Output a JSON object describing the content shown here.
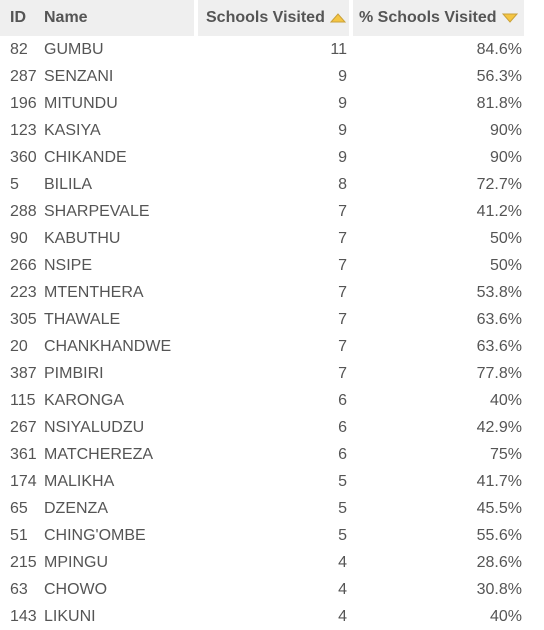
{
  "headers": {
    "id": "ID",
    "name": "Name",
    "schools_visited": "Schools Visited",
    "pct_schools_visited": "% Schools Visited"
  },
  "sort": {
    "schools_visited": "ascending-arrow-icon",
    "pct_schools_visited": "descending-arrow-icon",
    "arrow_fill": "#f5c542",
    "arrow_stroke": "#c9a13a"
  },
  "rows": [
    {
      "id": "82",
      "name": "GUMBU",
      "visited": "11",
      "pct": "84.6%"
    },
    {
      "id": "287",
      "name": "SENZANI",
      "visited": "9",
      "pct": "56.3%"
    },
    {
      "id": "196",
      "name": "MITUNDU",
      "visited": "9",
      "pct": "81.8%"
    },
    {
      "id": "123",
      "name": "KASIYA",
      "visited": "9",
      "pct": "90%"
    },
    {
      "id": "360",
      "name": "CHIKANDE",
      "visited": "9",
      "pct": "90%"
    },
    {
      "id": "5",
      "name": "BILILA",
      "visited": "8",
      "pct": "72.7%"
    },
    {
      "id": "288",
      "name": "SHARPEVALE",
      "visited": "7",
      "pct": "41.2%"
    },
    {
      "id": "90",
      "name": "KABUTHU",
      "visited": "7",
      "pct": "50%"
    },
    {
      "id": "266",
      "name": "NSIPE",
      "visited": "7",
      "pct": "50%"
    },
    {
      "id": "223",
      "name": "MTENTHERA",
      "visited": "7",
      "pct": "53.8%"
    },
    {
      "id": "305",
      "name": "THAWALE",
      "visited": "7",
      "pct": "63.6%"
    },
    {
      "id": "20",
      "name": "CHANKHANDWE",
      "visited": "7",
      "pct": "63.6%"
    },
    {
      "id": "387",
      "name": "PIMBIRI",
      "visited": "7",
      "pct": "77.8%"
    },
    {
      "id": "115",
      "name": "KARONGA",
      "visited": "6",
      "pct": "40%"
    },
    {
      "id": "267",
      "name": "NSIYALUDZU",
      "visited": "6",
      "pct": "42.9%"
    },
    {
      "id": "361",
      "name": "MATCHEREZA",
      "visited": "6",
      "pct": "75%"
    },
    {
      "id": "174",
      "name": "MALIKHA",
      "visited": "5",
      "pct": "41.7%"
    },
    {
      "id": "65",
      "name": "DZENZA",
      "visited": "5",
      "pct": "45.5%"
    },
    {
      "id": "51",
      "name": "CHING'OMBE",
      "visited": "5",
      "pct": "55.6%"
    },
    {
      "id": "215",
      "name": "MPINGU",
      "visited": "4",
      "pct": "28.6%"
    },
    {
      "id": "63",
      "name": "CHOWO",
      "visited": "4",
      "pct": "30.8%"
    },
    {
      "id": "143",
      "name": "LIKUNI",
      "visited": "4",
      "pct": "40%"
    }
  ]
}
